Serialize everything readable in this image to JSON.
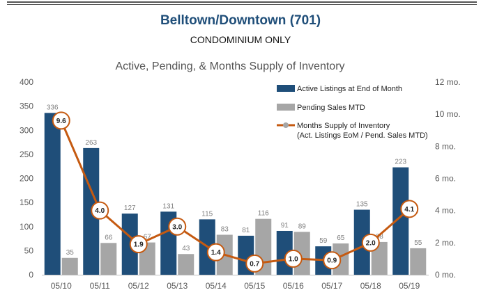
{
  "header": {
    "title": "Belltown/Downtown (701)",
    "subtitle": "CONDOMINIUM ONLY"
  },
  "chart_data": {
    "type": "bar",
    "title": "Active, Pending, & Months Supply of Inventory",
    "categories": [
      "05/10",
      "05/11",
      "05/12",
      "05/13",
      "05/14",
      "05/15",
      "05/16",
      "05/17",
      "05/18",
      "05/19"
    ],
    "series": [
      {
        "name": "Active Listings at End of Month",
        "type": "bar",
        "axis": "left",
        "color": "#1f4e79",
        "values": [
          336,
          263,
          127,
          131,
          115,
          81,
          91,
          59,
          135,
          223
        ]
      },
      {
        "name": "Pending Sales MTD",
        "type": "bar",
        "axis": "left",
        "color": "#a6a6a6",
        "values": [
          35,
          66,
          67,
          43,
          83,
          116,
          89,
          65,
          68,
          55
        ]
      },
      {
        "name": "Months Supply of Inventory",
        "name_line2": "(Act. Listings EoM / Pend. Sales MTD)",
        "type": "line",
        "axis": "right",
        "color": "#c55a11",
        "values": [
          9.6,
          4.0,
          1.9,
          3.0,
          1.4,
          0.7,
          1.0,
          0.9,
          2.0,
          4.1
        ]
      }
    ],
    "ylim": [
      0,
      400
    ],
    "yticks": [
      0,
      50,
      100,
      150,
      200,
      250,
      300,
      350,
      400
    ],
    "y2lim": [
      0,
      12
    ],
    "y2ticks": [
      0,
      2,
      4,
      6,
      8,
      10,
      12
    ],
    "y2tick_suffix": " mo.",
    "legend_position": "top-right",
    "grid": false
  }
}
